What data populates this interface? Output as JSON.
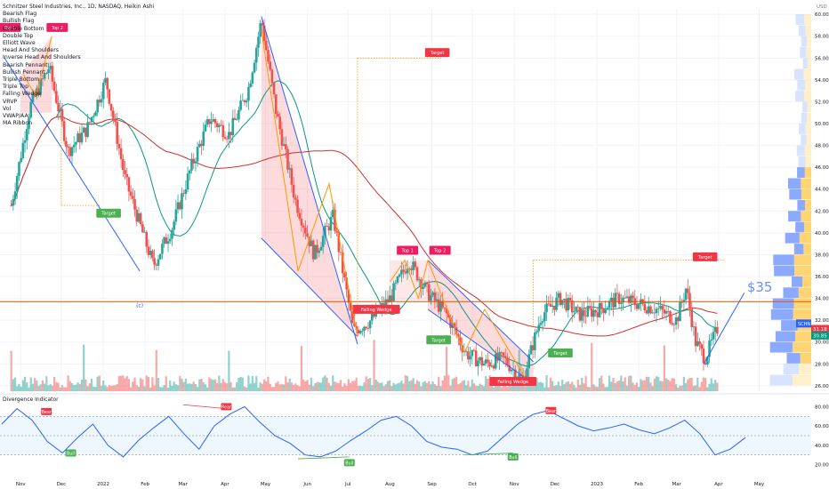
{
  "chart_data": [
    {
      "type": "candlestick",
      "title": "Schnitzer Steel Industries, Inc., 1D, NASDAQ, Heikin Ashi",
      "currency_label": "USD",
      "indicators_legend": [
        "Bearish Flag",
        "Bullish Flag",
        "Double Bottom",
        "Double Top",
        "Elliott Wave",
        "Head And Shoulders",
        "Inverse Head And Shoulders",
        "Bearish Pennant",
        "Bullish Pennant",
        "Triple Bottom",
        "Triple Top",
        "Falling Wedge",
        "VRVP",
        "Vol",
        "VWAP/AA",
        "MA Ribbon"
      ],
      "y_ticks": [
        "60.00",
        "58.00",
        "56.00",
        "54.00",
        "52.00",
        "50.00",
        "48.00",
        "46.00",
        "44.00",
        "42.00",
        "40.00",
        "38.00",
        "36.00",
        "34.00",
        "32.00",
        "30.00",
        "28.00",
        "26.00"
      ],
      "ylim": [
        25.5,
        60.5
      ],
      "x_ticks": [
        "Nov",
        "Dec",
        "2022",
        "Feb",
        "Mar",
        "Apr",
        "May",
        "Jun",
        "Jul",
        "Aug",
        "Sep",
        "Oct",
        "Nov",
        "Dec",
        "2023",
        "Feb",
        "Mar",
        "Apr",
        "May"
      ],
      "last_price_label": "31.18",
      "last_price_label_2": "30.85",
      "ticker_label": "SCHN",
      "price_target_annotation": "$35",
      "pattern_labels": [
        {
          "text": "Top 1"
        },
        {
          "text": "Top 2"
        },
        {
          "text": "Target"
        },
        {
          "text": "Target"
        },
        {
          "text": "Falling Wedge"
        },
        {
          "text": "Top 1"
        },
        {
          "text": "Top 2"
        },
        {
          "text": "Target"
        },
        {
          "text": "Falling Wedge"
        },
        {
          "text": "Target"
        },
        {
          "text": "Target"
        }
      ],
      "wave_label": "(c)",
      "horizontal_level": 33.7,
      "heikin_ashi_close": [
        {
          "date": "2021-10-25",
          "close": 42.5
        },
        {
          "date": "2021-11-08",
          "close": 51.6
        },
        {
          "date": "2021-11-22",
          "close": 55.2
        },
        {
          "date": "2021-12-06",
          "close": 47.5
        },
        {
          "date": "2021-12-20",
          "close": 49.5
        },
        {
          "date": "2022-01-03",
          "close": 54.0
        },
        {
          "date": "2022-01-17",
          "close": 45.0
        },
        {
          "date": "2022-02-07",
          "close": 37.0
        },
        {
          "date": "2022-02-21",
          "close": 40.5
        },
        {
          "date": "2022-03-07",
          "close": 46.0
        },
        {
          "date": "2022-03-21",
          "close": 50.5
        },
        {
          "date": "2022-04-04",
          "close": 49.0
        },
        {
          "date": "2022-04-18",
          "close": 53.0
        },
        {
          "date": "2022-04-28",
          "close": 59.5
        },
        {
          "date": "2022-05-09",
          "close": 51.0
        },
        {
          "date": "2022-05-23",
          "close": 43.0
        },
        {
          "date": "2022-06-06",
          "close": 38.0
        },
        {
          "date": "2022-06-20",
          "close": 41.5
        },
        {
          "date": "2022-07-05",
          "close": 31.0
        },
        {
          "date": "2022-07-18",
          "close": 32.0
        },
        {
          "date": "2022-08-01",
          "close": 34.0
        },
        {
          "date": "2022-08-15",
          "close": 37.5
        },
        {
          "date": "2022-08-29",
          "close": 34.5
        },
        {
          "date": "2022-09-12",
          "close": 32.5
        },
        {
          "date": "2022-09-26",
          "close": 29.0
        },
        {
          "date": "2022-10-10",
          "close": 28.0
        },
        {
          "date": "2022-10-24",
          "close": 28.5
        },
        {
          "date": "2022-11-07",
          "close": 26.5
        },
        {
          "date": "2022-11-21",
          "close": 32.5
        },
        {
          "date": "2022-12-05",
          "close": 34.0
        },
        {
          "date": "2022-12-19",
          "close": 32.5
        },
        {
          "date": "2023-01-03",
          "close": 33.0
        },
        {
          "date": "2023-01-17",
          "close": 34.0
        },
        {
          "date": "2023-02-01",
          "close": 33.5
        },
        {
          "date": "2023-02-15",
          "close": 33.0
        },
        {
          "date": "2023-03-01",
          "close": 32.0
        },
        {
          "date": "2023-03-08",
          "close": 35.0
        },
        {
          "date": "2023-03-15",
          "close": 30.0
        },
        {
          "date": "2023-03-22",
          "close": 28.5
        },
        {
          "date": "2023-03-31",
          "close": 31.2
        }
      ]
    },
    {
      "type": "line",
      "title": "Divergence Indicator",
      "y_ticks": [
        "80.00",
        "60.00",
        "40.00",
        "20.00"
      ],
      "ylim": [
        15,
        85
      ],
      "labels": [
        {
          "text": "Bear"
        },
        {
          "text": "Bear"
        },
        {
          "text": "Bear"
        },
        {
          "text": "Bull"
        },
        {
          "text": "Bull"
        },
        {
          "text": "Bull"
        }
      ],
      "oscillator": [
        62,
        78,
        66,
        44,
        32,
        48,
        62,
        40,
        28,
        45,
        58,
        70,
        52,
        36,
        60,
        72,
        80,
        64,
        50,
        42,
        30,
        28,
        34,
        45,
        55,
        66,
        70,
        60,
        44,
        38,
        36,
        30,
        34,
        48,
        62,
        72,
        76,
        68,
        60,
        55,
        58,
        62,
        56,
        52,
        58,
        66,
        52,
        30,
        36,
        48
      ]
    }
  ]
}
